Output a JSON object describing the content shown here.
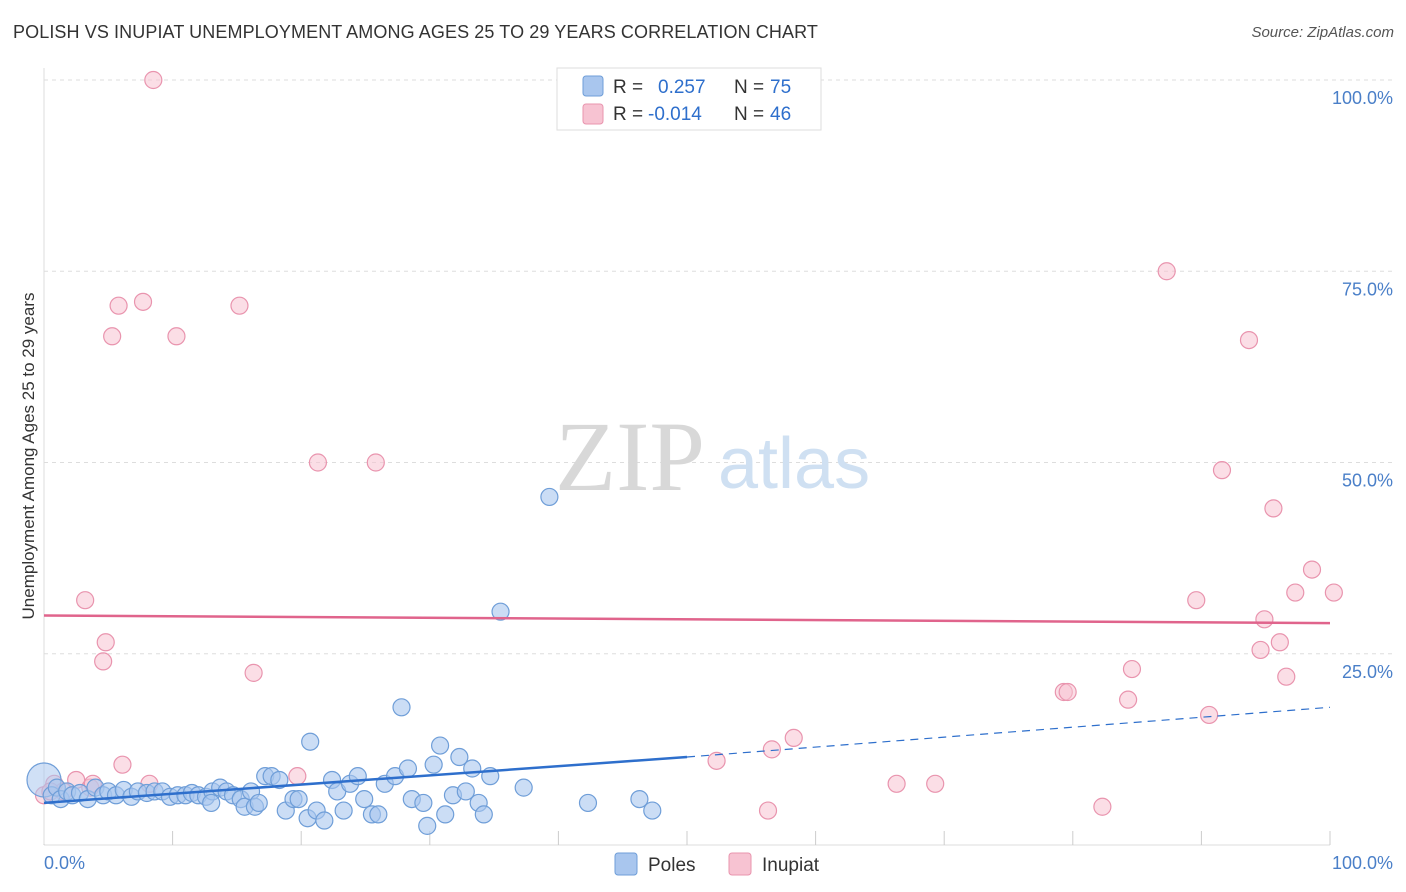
{
  "header": {
    "title": "POLISH VS INUPIAT UNEMPLOYMENT AMONG AGES 25 TO 29 YEARS CORRELATION CHART",
    "source": "Source: ZipAtlas.com"
  },
  "watermark": {
    "zip": "ZIP",
    "atlas": "atlas"
  },
  "colors": {
    "poles_fill": "#a9c6ee",
    "poles_stroke": "#6f9ed8",
    "poles_line": "#2e6fcc",
    "inupiat_fill": "#f7c3d2",
    "inupiat_stroke": "#e994ae",
    "inupiat_line": "#e0648c",
    "tick": "#4a7fc8",
    "grid": "#dddddd"
  },
  "legend_box": {
    "rows": [
      {
        "r_label": "R =",
        "r_value": "0.257",
        "n_label": "N =",
        "n_value": "75"
      },
      {
        "r_label": "R =",
        "r_value": "-0.014",
        "n_label": "N =",
        "n_value": "46"
      }
    ]
  },
  "chart_data": {
    "type": "scatter",
    "title": "POLISH VS INUPIAT UNEMPLOYMENT AMONG AGES 25 TO 29 YEARS CORRELATION CHART",
    "xlabel": "",
    "ylabel": "Unemployment Among Ages 25 to 29 years",
    "xlim": [
      0,
      100
    ],
    "ylim": [
      0,
      100
    ],
    "x_tick_labels": [
      "0.0%",
      "100.0%"
    ],
    "y_ticks": [
      {
        "value": 100,
        "label": "100.0%"
      },
      {
        "value": 75,
        "label": "75.0%"
      },
      {
        "value": 50,
        "label": "50.0%"
      },
      {
        "value": 25,
        "label": "25.0%"
      }
    ],
    "grid": true,
    "legend": [
      "Poles",
      "Inupiat"
    ],
    "series": [
      {
        "name": "Poles",
        "R": 0.257,
        "N": 75,
        "trend": {
          "x0": 0,
          "y0": 5.5,
          "x1": 50,
          "y1": 11.5,
          "dashed_to_x": 100,
          "dashed_to_y": 18
        },
        "points": [
          [
            0,
            8.5
          ],
          [
            0.6,
            6.5
          ],
          [
            1,
            7.5
          ],
          [
            1.3,
            6
          ],
          [
            1.8,
            7
          ],
          [
            2.2,
            6.5
          ],
          [
            2.8,
            6.8
          ],
          [
            3.4,
            6
          ],
          [
            4,
            7.5
          ],
          [
            4.6,
            6.5
          ],
          [
            5,
            7
          ],
          [
            5.6,
            6.5
          ],
          [
            6.2,
            7.2
          ],
          [
            6.8,
            6.3
          ],
          [
            7.3,
            7
          ],
          [
            8,
            6.8
          ],
          [
            8.6,
            7
          ],
          [
            9.2,
            7
          ],
          [
            9.8,
            6.3
          ],
          [
            10.4,
            6.5
          ],
          [
            11,
            6.5
          ],
          [
            11.5,
            6.8
          ],
          [
            12,
            6.5
          ],
          [
            12.6,
            6.3
          ],
          [
            13.1,
            7
          ],
          [
            13,
            5.5
          ],
          [
            13.7,
            7.5
          ],
          [
            14.2,
            7
          ],
          [
            14.7,
            6.5
          ],
          [
            15.3,
            6
          ],
          [
            15.6,
            5
          ],
          [
            16.1,
            7
          ],
          [
            16.4,
            5
          ],
          [
            16.7,
            5.5
          ],
          [
            17.2,
            9
          ],
          [
            17.7,
            9
          ],
          [
            18.3,
            8.5
          ],
          [
            18.8,
            4.5
          ],
          [
            19.4,
            6
          ],
          [
            19.8,
            6
          ],
          [
            20.5,
            3.5
          ],
          [
            20.7,
            13.5
          ],
          [
            21.2,
            4.5
          ],
          [
            21.8,
            3.2
          ],
          [
            22.4,
            8.5
          ],
          [
            22.8,
            7
          ],
          [
            23.3,
            4.5
          ],
          [
            23.8,
            8
          ],
          [
            24.4,
            9
          ],
          [
            24.9,
            6
          ],
          [
            25.5,
            4
          ],
          [
            26,
            4
          ],
          [
            26.5,
            8
          ],
          [
            27.3,
            9
          ],
          [
            27.8,
            18
          ],
          [
            28.3,
            10
          ],
          [
            28.6,
            6
          ],
          [
            29.5,
            5.5
          ],
          [
            29.8,
            2.5
          ],
          [
            30.3,
            10.5
          ],
          [
            30.8,
            13
          ],
          [
            31.2,
            4
          ],
          [
            31.8,
            6.5
          ],
          [
            32.3,
            11.5
          ],
          [
            32.8,
            7
          ],
          [
            33.3,
            10
          ],
          [
            33.8,
            5.5
          ],
          [
            34.2,
            4
          ],
          [
            34.7,
            9
          ],
          [
            35.5,
            30.5
          ],
          [
            37.3,
            7.5
          ],
          [
            39.3,
            45.5
          ],
          [
            42.3,
            5.5
          ],
          [
            46.3,
            6
          ],
          [
            47.3,
            4.5
          ]
        ]
      },
      {
        "name": "Inupiat",
        "R": -0.014,
        "N": 46,
        "trend": {
          "x0": 0,
          "y0": 30,
          "x1": 100,
          "y1": 29
        },
        "points": [
          [
            0,
            6.5
          ],
          [
            0.8,
            8
          ],
          [
            1.5,
            7
          ],
          [
            2.5,
            8.5
          ],
          [
            3.2,
            32
          ],
          [
            3.6,
            7.5
          ],
          [
            3.8,
            8
          ],
          [
            4.6,
            24
          ],
          [
            4.8,
            26.5
          ],
          [
            5.3,
            66.5
          ],
          [
            5.8,
            70.5
          ],
          [
            6.1,
            10.5
          ],
          [
            7.7,
            71
          ],
          [
            8.2,
            8
          ],
          [
            8.5,
            100
          ],
          [
            10.3,
            66.5
          ],
          [
            15.2,
            70.5
          ],
          [
            16.3,
            22.5
          ],
          [
            19.7,
            9
          ],
          [
            21.3,
            50
          ],
          [
            25.8,
            50
          ],
          [
            52.3,
            11
          ],
          [
            56.3,
            4.5
          ],
          [
            56.6,
            12.5
          ],
          [
            58.3,
            14
          ],
          [
            66.3,
            8
          ],
          [
            69.3,
            8
          ],
          [
            79.3,
            20
          ],
          [
            79.6,
            20
          ],
          [
            82.3,
            5
          ],
          [
            84.3,
            19
          ],
          [
            84.6,
            23
          ],
          [
            87.3,
            75
          ],
          [
            89.6,
            32
          ],
          [
            90.6,
            17
          ],
          [
            91.6,
            49
          ],
          [
            93.7,
            66
          ],
          [
            94.6,
            25.5
          ],
          [
            94.9,
            29.5
          ],
          [
            95.6,
            44
          ],
          [
            96.1,
            26.5
          ],
          [
            96.6,
            22
          ],
          [
            97.3,
            33
          ],
          [
            98.6,
            36
          ],
          [
            100.3,
            33
          ],
          [
            0.5,
            7
          ]
        ]
      }
    ]
  }
}
